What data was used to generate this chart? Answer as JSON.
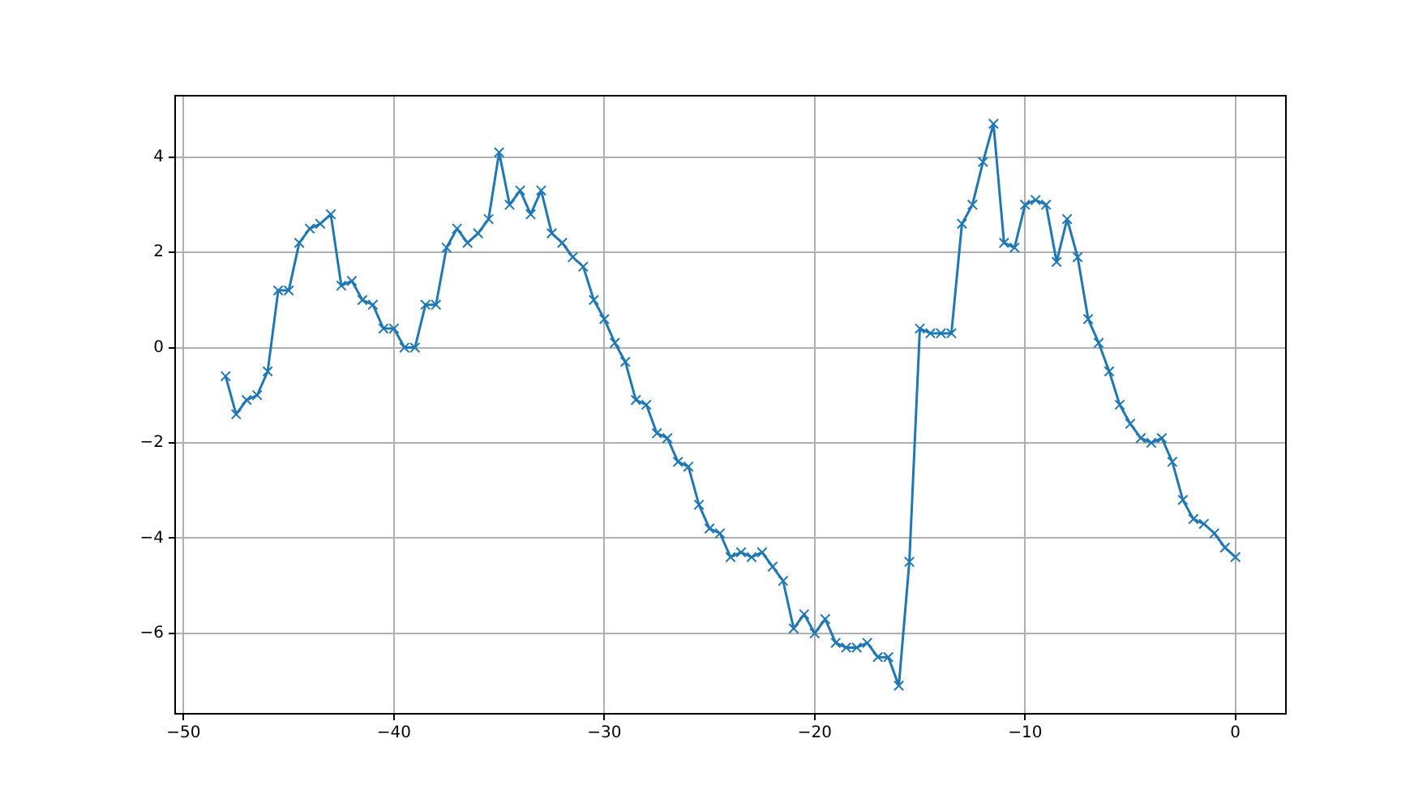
{
  "chart_data": {
    "type": "line",
    "x": [
      -48,
      -47.5,
      -47,
      -46.5,
      -46,
      -45.5,
      -45,
      -44.5,
      -44,
      -43.5,
      -43,
      -42.5,
      -42,
      -41.5,
      -41,
      -40.5,
      -40,
      -39.5,
      -39,
      -38.5,
      -38,
      -37.5,
      -37,
      -36.5,
      -36,
      -35.5,
      -35,
      -34.5,
      -34,
      -33.5,
      -33,
      -32.5,
      -32,
      -31.5,
      -31,
      -30.5,
      -30,
      -29.5,
      -29,
      -28.5,
      -28,
      -27.5,
      -27,
      -26.5,
      -26,
      -25.5,
      -25,
      -24.5,
      -24,
      -23.5,
      -23,
      -22.5,
      -22,
      -21.5,
      -21,
      -20.5,
      -20,
      -19.5,
      -19,
      -18.5,
      -18,
      -17.5,
      -17,
      -16.5,
      -16,
      -15.5,
      -15,
      -14.5,
      -14,
      -13.5,
      -13,
      -12.5,
      -12,
      -11.5,
      -11,
      -10.5,
      -10,
      -9.5,
      -9,
      -8.5,
      -8,
      -7.5,
      -7,
      -6.5,
      -6,
      -5.5,
      -5,
      -4.5,
      -4,
      -3.5,
      -3,
      -2.5,
      -2,
      -1.5,
      -1,
      -0.5,
      0
    ],
    "series": [
      {
        "color": "#1f77b4",
        "values": [
          -0.6,
          -1.4,
          -1.1,
          -1.0,
          -0.5,
          1.2,
          1.2,
          2.2,
          2.5,
          2.6,
          2.8,
          1.3,
          1.4,
          1.0,
          0.9,
          0.4,
          0.4,
          0.0,
          0.0,
          0.9,
          0.9,
          2.1,
          2.5,
          2.2,
          2.4,
          2.7,
          4.1,
          3.0,
          3.3,
          2.8,
          3.3,
          2.4,
          2.2,
          1.9,
          1.7,
          1.0,
          0.6,
          0.1,
          -0.3,
          -1.1,
          -1.2,
          -1.8,
          -1.9,
          -2.4,
          -2.5,
          -3.3,
          -3.8,
          -3.9,
          -4.4,
          -4.3,
          -4.4,
          -4.3,
          -4.6,
          -4.9,
          -5.9,
          -5.6,
          -6.0,
          -5.7,
          -6.2,
          -6.3,
          -6.3,
          -6.2,
          -6.5,
          -6.5,
          -7.1,
          -4.5,
          0.4,
          0.3,
          0.3,
          0.3,
          2.6,
          3.0,
          3.9,
          4.7,
          2.2,
          2.1,
          3.0,
          3.1,
          3.0,
          1.8,
          2.7,
          1.9,
          0.6,
          0.1,
          -0.5,
          -1.2,
          -1.6,
          -1.9,
          -2.0,
          -1.9,
          -2.4,
          -3.2,
          -3.6,
          -3.7,
          -3.9,
          -4.2,
          -4.4
        ]
      }
    ],
    "xlim": [
      -50.4,
      2.4
    ],
    "ylim": [
      -7.69,
      5.29
    ],
    "xticks": [
      {
        "value": -50,
        "label": "−50"
      },
      {
        "value": -40,
        "label": "−40"
      },
      {
        "value": -30,
        "label": "−30"
      },
      {
        "value": -20,
        "label": "−20"
      },
      {
        "value": -10,
        "label": "−10"
      },
      0
    ],
    "yticks": [
      {
        "value": -6,
        "label": "−6"
      },
      {
        "value": -4,
        "label": "−4"
      },
      {
        "value": -2,
        "label": "−2"
      },
      0,
      2,
      4
    ],
    "grid": true,
    "marker": "cross",
    "line_style": "solid",
    "legend": false
  }
}
